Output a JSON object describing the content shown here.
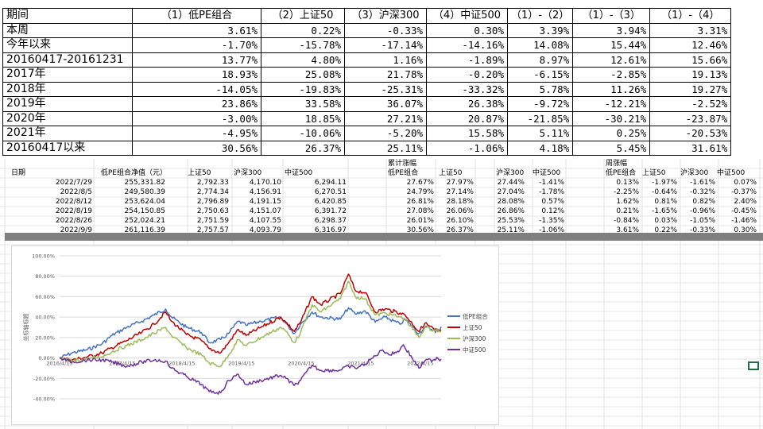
{
  "summary": {
    "header": [
      "期间",
      "（1）低PE组合",
      "（2）上证50",
      "（3）沪深300",
      "（4）中证500",
      "（1）-（2）",
      "（1）-（3）",
      "（1）-（4）"
    ],
    "rows": [
      [
        "本周",
        "3.61%",
        "0.22%",
        "-0.33%",
        "0.30%",
        "3.39%",
        "3.94%",
        "3.31%"
      ],
      [
        "今年以来",
        "-1.70%",
        "-15.78%",
        "-17.14%",
        "-14.16%",
        "14.08%",
        "15.44%",
        "12.46%"
      ],
      [
        "20160417-20161231",
        "13.77%",
        "4.80%",
        "1.16%",
        "-1.89%",
        "8.97%",
        "12.61%",
        "15.66%"
      ],
      [
        "2017年",
        "18.93%",
        "25.08%",
        "21.78%",
        "-0.20%",
        "-6.15%",
        "-2.85%",
        "19.13%"
      ],
      [
        "2018年",
        "-14.05%",
        "-19.83%",
        "-25.31%",
        "-33.32%",
        "5.78%",
        "11.26%",
        "19.27%"
      ],
      [
        "2019年",
        "23.86%",
        "33.58%",
        "36.07%",
        "26.38%",
        "-9.72%",
        "-12.21%",
        "-2.52%"
      ],
      [
        "2020年",
        "-3.00%",
        "18.85%",
        "27.21%",
        "20.87%",
        "-21.85%",
        "-30.21%",
        "-23.87%"
      ],
      [
        "2021年",
        "-4.95%",
        "-10.06%",
        "-5.20%",
        "15.58%",
        "5.11%",
        "0.25%",
        "-20.53%"
      ],
      [
        "20160417以来",
        "30.56%",
        "26.37%",
        "25.11%",
        "-1.06%",
        "4.18%",
        "5.45%",
        "31.61%"
      ]
    ]
  },
  "sheet": {
    "nav_header": [
      "日期",
      "低PE组合净值（元）",
      "上证50",
      "沪深300",
      "中证500"
    ],
    "cum_title": "累计涨幅",
    "cum_header": [
      "低PE组合",
      "上证50",
      "沪深300",
      "中证500"
    ],
    "week_title": "周涨幅",
    "week_header": [
      "低PE组合",
      "上证50",
      "沪深300",
      "中证500"
    ],
    "rows": [
      {
        "date": "2022/7/29",
        "nav": [
          "255,331.82",
          "2,792.33",
          "4,170.10",
          "6,294.11"
        ],
        "cum": [
          "27.67%",
          "27.97%",
          "27.44%",
          "-1.41%"
        ],
        "week": [
          "0.13%",
          "-1.97%",
          "-1.61%",
          "0.07%"
        ]
      },
      {
        "date": "2022/8/5",
        "nav": [
          "249,580.39",
          "2,774.34",
          "4,156.91",
          "6,270.51"
        ],
        "cum": [
          "24.79%",
          "27.14%",
          "27.04%",
          "-1.78%"
        ],
        "week": [
          "-2.25%",
          "-0.64%",
          "-0.32%",
          "-0.37%"
        ]
      },
      {
        "date": "2022/8/12",
        "nav": [
          "253,624.04",
          "2,796.89",
          "4,191.15",
          "6,420.85"
        ],
        "cum": [
          "26.81%",
          "28.18%",
          "28.08%",
          "0.57%"
        ],
        "week": [
          "1.62%",
          "0.81%",
          "0.82%",
          "2.40%"
        ]
      },
      {
        "date": "2022/8/19",
        "nav": [
          "254,150.85",
          "2,750.63",
          "4,151.07",
          "6,391.72"
        ],
        "cum": [
          "27.08%",
          "26.06%",
          "26.86%",
          "0.12%"
        ],
        "week": [
          "0.21%",
          "-1.65%",
          "-0.96%",
          "-0.45%"
        ]
      },
      {
        "date": "2022/8/26",
        "nav": [
          "252,024.21",
          "2,751.59",
          "4,107.55",
          "6,298.37"
        ],
        "cum": [
          "26.01%",
          "26.10%",
          "25.53%",
          "-1.35%"
        ],
        "week": [
          "-0.84%",
          "0.03%",
          "-1.05%",
          "-1.46%"
        ]
      },
      {
        "date": "2022/9/9",
        "nav": [
          "261,116.39",
          "2,757.57",
          "4,093.79",
          "6,316.97"
        ],
        "cum": [
          "30.56%",
          "26.37%",
          "25.11%",
          "-1.06%"
        ],
        "week": [
          "3.61%",
          "0.22%",
          "-0.33%",
          "0.30%"
        ]
      }
    ]
  },
  "chart_data": {
    "type": "line",
    "ylabel": "坐标轴标题",
    "ylim": [
      -40,
      100
    ],
    "y_ticks": [
      "100.00%",
      "80.00%",
      "60.00%",
      "40.00%",
      "20.00%",
      "0.00%",
      "-20.00%",
      "-40.00%"
    ],
    "y_tick_values": [
      100,
      80,
      60,
      40,
      20,
      0,
      -20,
      -40
    ],
    "x_ticks": [
      "2016/4/15",
      "2017/4/15",
      "2018/4/15",
      "2019/4/15",
      "2020/4/15",
      "2021/4/15",
      "2022/4/15"
    ],
    "x_range": [
      "2016/4/15",
      "2022/9/9"
    ],
    "legend_position": "right",
    "gridlines": true,
    "series": [
      {
        "name": "低PE组合",
        "color": "#4472c4",
        "points": [
          [
            "2016/4/15",
            0
          ],
          [
            "2016/7/1",
            5
          ],
          [
            "2016/10/1",
            8
          ],
          [
            "2016/12/31",
            13.8
          ],
          [
            "2017/3/1",
            22
          ],
          [
            "2017/6/1",
            30
          ],
          [
            "2017/9/1",
            36
          ],
          [
            "2017/11/15",
            42
          ],
          [
            "2018/1/25",
            48
          ],
          [
            "2018/3/1",
            40
          ],
          [
            "2018/6/1",
            30
          ],
          [
            "2018/9/1",
            25
          ],
          [
            "2018/10/19",
            15
          ],
          [
            "2018/12/28",
            18
          ],
          [
            "2019/2/15",
            24
          ],
          [
            "2019/4/15",
            36
          ],
          [
            "2019/6/1",
            32
          ],
          [
            "2019/9/1",
            36
          ],
          [
            "2019/12/31",
            40
          ],
          [
            "2020/2/1",
            34
          ],
          [
            "2020/3/23",
            24
          ],
          [
            "2020/5/1",
            33
          ],
          [
            "2020/7/10",
            45
          ],
          [
            "2020/9/1",
            40
          ],
          [
            "2020/12/31",
            38
          ],
          [
            "2021/2/18",
            49
          ],
          [
            "2021/4/1",
            43
          ],
          [
            "2021/6/1",
            46
          ],
          [
            "2021/8/1",
            35
          ],
          [
            "2021/10/1",
            40
          ],
          [
            "2021/12/31",
            33
          ],
          [
            "2022/2/1",
            38
          ],
          [
            "2022/4/26",
            24
          ],
          [
            "2022/6/1",
            30
          ],
          [
            "2022/7/29",
            27.7
          ],
          [
            "2022/8/5",
            24.8
          ],
          [
            "2022/8/12",
            26.8
          ],
          [
            "2022/8/19",
            27.1
          ],
          [
            "2022/8/26",
            26.0
          ],
          [
            "2022/9/9",
            30.6
          ]
        ]
      },
      {
        "name": "上证50",
        "color": "#c00000",
        "points": [
          [
            "2016/4/15",
            0
          ],
          [
            "2016/7/1",
            -2
          ],
          [
            "2016/10/1",
            1
          ],
          [
            "2016/12/31",
            4.8
          ],
          [
            "2017/3/1",
            10
          ],
          [
            "2017/6/1",
            17
          ],
          [
            "2017/9/1",
            25
          ],
          [
            "2017/11/15",
            33
          ],
          [
            "2018/1/25",
            45
          ],
          [
            "2018/3/1",
            36
          ],
          [
            "2018/6/1",
            23
          ],
          [
            "2018/9/1",
            17
          ],
          [
            "2018/10/19",
            9
          ],
          [
            "2018/12/28",
            5
          ],
          [
            "2019/2/15",
            15
          ],
          [
            "2019/4/15",
            28
          ],
          [
            "2019/6/1",
            22
          ],
          [
            "2019/9/1",
            30
          ],
          [
            "2019/12/31",
            40
          ],
          [
            "2020/2/1",
            35
          ],
          [
            "2020/3/23",
            26
          ],
          [
            "2020/5/1",
            35
          ],
          [
            "2020/7/10",
            60
          ],
          [
            "2020/9/1",
            52
          ],
          [
            "2020/12/31",
            63
          ],
          [
            "2021/2/18",
            82
          ],
          [
            "2021/4/1",
            66
          ],
          [
            "2021/6/1",
            64
          ],
          [
            "2021/8/1",
            45
          ],
          [
            "2021/10/1",
            48
          ],
          [
            "2021/12/31",
            44
          ],
          [
            "2022/2/1",
            42
          ],
          [
            "2022/4/26",
            26
          ],
          [
            "2022/6/1",
            34
          ],
          [
            "2022/7/29",
            28.0
          ],
          [
            "2022/8/5",
            27.1
          ],
          [
            "2022/8/12",
            28.2
          ],
          [
            "2022/8/19",
            26.1
          ],
          [
            "2022/8/26",
            26.1
          ],
          [
            "2022/9/9",
            26.4
          ]
        ]
      },
      {
        "name": "沪深300",
        "color": "#9bbb59",
        "points": [
          [
            "2016/4/15",
            0
          ],
          [
            "2016/7/1",
            -3
          ],
          [
            "2016/10/1",
            -1
          ],
          [
            "2016/12/31",
            1.2
          ],
          [
            "2017/3/1",
            6
          ],
          [
            "2017/6/1",
            12
          ],
          [
            "2017/9/1",
            18
          ],
          [
            "2017/11/15",
            24
          ],
          [
            "2018/1/25",
            30
          ],
          [
            "2018/3/1",
            22
          ],
          [
            "2018/6/1",
            10
          ],
          [
            "2018/9/1",
            3
          ],
          [
            "2018/10/19",
            -5
          ],
          [
            "2018/12/28",
            -8
          ],
          [
            "2019/2/15",
            3
          ],
          [
            "2019/4/15",
            18
          ],
          [
            "2019/6/1",
            12
          ],
          [
            "2019/9/1",
            20
          ],
          [
            "2019/12/31",
            30
          ],
          [
            "2020/2/1",
            26
          ],
          [
            "2020/3/23",
            15
          ],
          [
            "2020/5/1",
            25
          ],
          [
            "2020/7/10",
            52
          ],
          [
            "2020/9/1",
            45
          ],
          [
            "2020/12/31",
            58
          ],
          [
            "2021/2/18",
            75
          ],
          [
            "2021/4/1",
            60
          ],
          [
            "2021/6/1",
            58
          ],
          [
            "2021/8/1",
            42
          ],
          [
            "2021/10/1",
            44
          ],
          [
            "2021/12/31",
            40
          ],
          [
            "2022/2/1",
            38
          ],
          [
            "2022/4/26",
            20
          ],
          [
            "2022/6/1",
            30
          ],
          [
            "2022/7/29",
            27.4
          ],
          [
            "2022/8/5",
            27.0
          ],
          [
            "2022/8/12",
            28.1
          ],
          [
            "2022/8/19",
            26.9
          ],
          [
            "2022/8/26",
            25.5
          ],
          [
            "2022/9/9",
            25.1
          ]
        ]
      },
      {
        "name": "中证500",
        "color": "#7030a0",
        "points": [
          [
            "2016/4/15",
            0
          ],
          [
            "2016/7/1",
            -4
          ],
          [
            "2016/10/1",
            -2
          ],
          [
            "2016/12/31",
            -1.9
          ],
          [
            "2017/3/1",
            -4
          ],
          [
            "2017/6/1",
            -8
          ],
          [
            "2017/9/1",
            -4
          ],
          [
            "2017/11/15",
            -2
          ],
          [
            "2018/1/25",
            -3
          ],
          [
            "2018/3/1",
            -10
          ],
          [
            "2018/6/1",
            -18
          ],
          [
            "2018/9/1",
            -26
          ],
          [
            "2018/10/19",
            -33
          ],
          [
            "2018/12/28",
            -34
          ],
          [
            "2019/2/15",
            -22
          ],
          [
            "2019/4/15",
            -16
          ],
          [
            "2019/6/1",
            -26
          ],
          [
            "2019/9/1",
            -22
          ],
          [
            "2019/12/31",
            -17
          ],
          [
            "2020/2/1",
            -20
          ],
          [
            "2020/3/23",
            -27
          ],
          [
            "2020/5/1",
            -22
          ],
          [
            "2020/7/10",
            -7
          ],
          [
            "2020/9/1",
            -12
          ],
          [
            "2020/12/31",
            -12
          ],
          [
            "2021/2/18",
            -8
          ],
          [
            "2021/4/1",
            -10
          ],
          [
            "2021/6/1",
            -6
          ],
          [
            "2021/8/1",
            2
          ],
          [
            "2021/9/15",
            8
          ],
          [
            "2021/11/1",
            3
          ],
          [
            "2021/12/31",
            8
          ],
          [
            "2022/1/20",
            13
          ],
          [
            "2022/4/26",
            -10
          ],
          [
            "2022/6/1",
            -3
          ],
          [
            "2022/7/29",
            -1.4
          ],
          [
            "2022/8/5",
            -1.8
          ],
          [
            "2022/8/12",
            0.6
          ],
          [
            "2022/8/19",
            0.1
          ],
          [
            "2022/8/26",
            -1.4
          ],
          [
            "2022/9/9",
            -1.1
          ]
        ]
      }
    ]
  }
}
